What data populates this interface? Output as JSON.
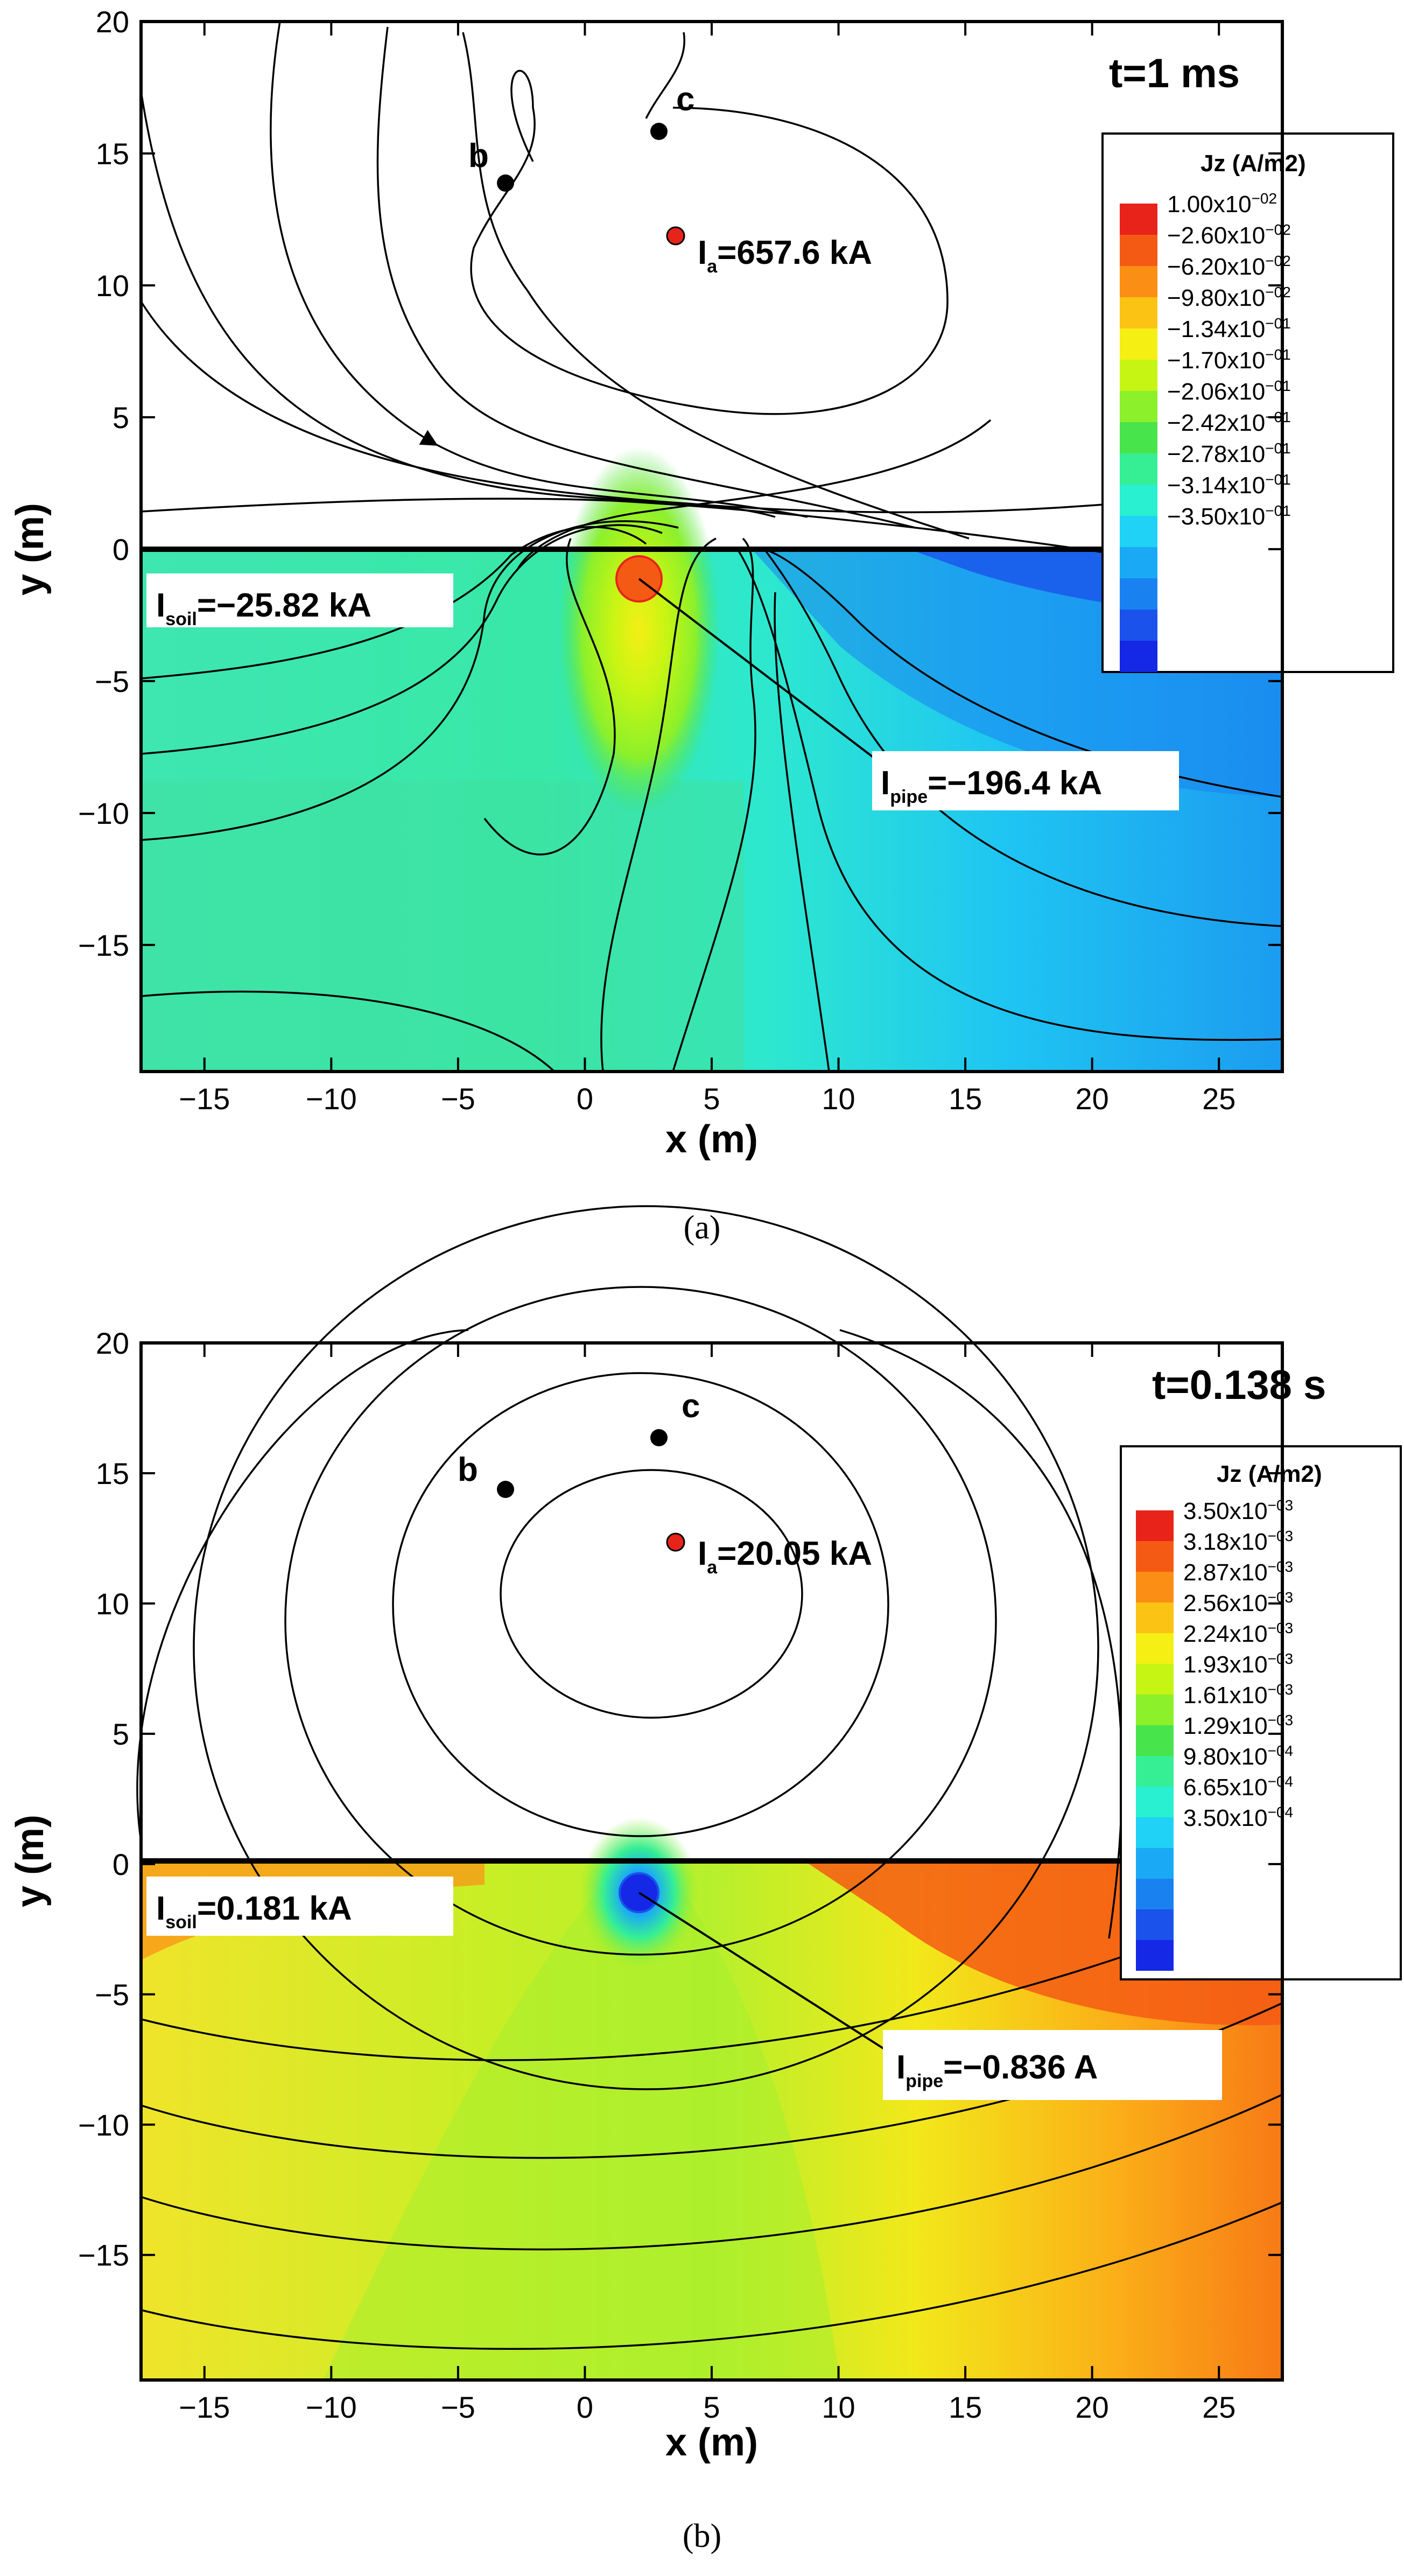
{
  "chart_data": [
    {
      "type": "contour",
      "panel": "(a)",
      "time_label": "t=1 ms",
      "xlabel": "x (m)",
      "ylabel": "y (m)",
      "xlim": [
        -17.5,
        27.5
      ],
      "ylim": [
        -19.8,
        20
      ],
      "xticks": [
        "−15",
        "−10",
        "−5",
        "0",
        "5",
        "10",
        "15",
        "20",
        "25"
      ],
      "xtick_values": [
        -15,
        -10,
        -5,
        0,
        5,
        10,
        15,
        20,
        25
      ],
      "yticks": [
        "20",
        "15",
        "10",
        "5",
        "0",
        "−5",
        "−10",
        "−15"
      ],
      "ytick_values": [
        20,
        15,
        10,
        5,
        0,
        -5,
        -10,
        -15
      ],
      "legend": {
        "title": "Jz  (A/m2)",
        "levels": [
          {
            "mant": "1.00",
            "exp": "−02",
            "color": "#e8231a"
          },
          {
            "mant": "−2.60",
            "exp": "−02",
            "color": "#f55a14"
          },
          {
            "mant": "−6.20",
            "exp": "−02",
            "color": "#fb8e14"
          },
          {
            "mant": "−9.80",
            "exp": "−02",
            "color": "#fbc314"
          },
          {
            "mant": "−1.34",
            "exp": "−01",
            "color": "#f5ef14"
          },
          {
            "mant": "−1.70",
            "exp": "−01",
            "color": "#c6f514"
          },
          {
            "mant": "−2.06",
            "exp": "−01",
            "color": "#8cf02b"
          },
          {
            "mant": "−2.42",
            "exp": "−01",
            "color": "#48e44b"
          },
          {
            "mant": "−2.78",
            "exp": "−01",
            "color": "#36ef94"
          },
          {
            "mant": "−3.14",
            "exp": "−01",
            "color": "#28f0d0"
          },
          {
            "mant": "−3.50",
            "exp": "−01",
            "color": "#20d2f5"
          },
          {
            "color": "#1aaaf5"
          },
          {
            "color": "#1a82f0"
          },
          {
            "color": "#1a52eb"
          },
          {
            "color": "#1428e6"
          }
        ]
      },
      "labels": {
        "b": "b",
        "c": "c",
        "ia_main": "I",
        "ia_sub": "a",
        "ia_val": "=657.6 kA",
        "isoil_main": "I",
        "isoil_sub": "soil",
        "isoil_val": "=−25.82 kA",
        "ipipe_main": "I",
        "ipipe_sub": "pipe",
        "ipipe_val": "=−196.4 kA"
      },
      "points": {
        "b": [
          -3,
          14
        ],
        "c": [
          2.8,
          16
        ],
        "a_conductor": [
          3.5,
          12
        ],
        "pipe": [
          1.8,
          -1.2
        ]
      }
    },
    {
      "type": "contour",
      "panel": "(b)",
      "time_label": "t=0.138 s",
      "xlabel": "x (m)",
      "ylabel": "y (m)",
      "xlim": [
        -17.5,
        27.5
      ],
      "ylim": [
        -19.8,
        20
      ],
      "xticks": [
        "−15",
        "−10",
        "−5",
        "0",
        "5",
        "10",
        "15",
        "20",
        "25"
      ],
      "xtick_values": [
        -15,
        -10,
        -5,
        0,
        5,
        10,
        15,
        20,
        25
      ],
      "yticks": [
        "20",
        "15",
        "10",
        "5",
        "0",
        "−5",
        "−10",
        "−15"
      ],
      "ytick_values": [
        20,
        15,
        10,
        5,
        0,
        -5,
        -10,
        -15
      ],
      "legend": {
        "title": "Jz  (A/m2)",
        "levels": [
          {
            "mant": "3.50",
            "exp": "−03",
            "color": "#e8231a"
          },
          {
            "mant": "3.18",
            "exp": "−03",
            "color": "#f55a14"
          },
          {
            "mant": "2.87",
            "exp": "−03",
            "color": "#fb8e14"
          },
          {
            "mant": "2.56",
            "exp": "−03",
            "color": "#fbc314"
          },
          {
            "mant": "2.24",
            "exp": "−03",
            "color": "#f5ef14"
          },
          {
            "mant": "1.93",
            "exp": "−03",
            "color": "#c6f514"
          },
          {
            "mant": "1.61",
            "exp": "−03",
            "color": "#8cf02b"
          },
          {
            "mant": "1.29",
            "exp": "−03",
            "color": "#48e44b"
          },
          {
            "mant": "9.80",
            "exp": "−04",
            "color": "#36ef94"
          },
          {
            "mant": "6.65",
            "exp": "−04",
            "color": "#28f0d0"
          },
          {
            "mant": "3.50",
            "exp": "−04",
            "color": "#20d2f5"
          },
          {
            "color": "#1aaaf5"
          },
          {
            "color": "#1a82f0"
          },
          {
            "color": "#1a52eb"
          },
          {
            "color": "#1428e6"
          }
        ]
      },
      "labels": {
        "b": "b",
        "c": "c",
        "ia_main": "I",
        "ia_sub": "a",
        "ia_val": "=20.05 kA",
        "isoil_main": "I",
        "isoil_sub": "soil",
        "isoil_val": "=0.181 kA",
        "ipipe_main": "I",
        "ipipe_sub": "pipe",
        "ipipe_val": "=−0.836 A"
      },
      "points": {
        "b": [
          -3,
          14
        ],
        "c": [
          2.8,
          16
        ],
        "a_conductor": [
          3.5,
          12
        ],
        "pipe": [
          1.8,
          -1.2
        ]
      }
    }
  ]
}
